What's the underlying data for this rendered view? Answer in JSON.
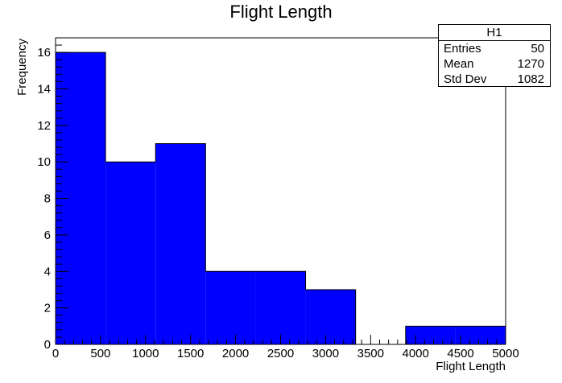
{
  "chart_data": {
    "type": "bar",
    "title": "Flight Length",
    "xlabel": "Flight Length",
    "ylabel": "Frequency",
    "bin_edges": [
      0,
      555.6,
      1111.1,
      1666.7,
      2222.2,
      2777.8,
      3333.3,
      3888.9,
      4444.4,
      5000
    ],
    "values": [
      16,
      10,
      11,
      4,
      4,
      3,
      0,
      1,
      1
    ],
    "xlim": [
      0,
      5000
    ],
    "ylim": [
      0,
      16.8
    ],
    "xticks": [
      "0",
      "500",
      "1000",
      "1500",
      "2000",
      "2500",
      "3000",
      "3500",
      "4000",
      "4500",
      "5000"
    ],
    "yticks": [
      "0",
      "2",
      "4",
      "6",
      "8",
      "10",
      "12",
      "14",
      "16"
    ],
    "bar_color": "#0000ff",
    "grid": false,
    "stats": {
      "name": "H1",
      "rows": [
        {
          "label": "Entries",
          "value": "50"
        },
        {
          "label": "Mean",
          "value": "1270"
        },
        {
          "label": "Std Dev",
          "value": "1082"
        }
      ]
    }
  }
}
